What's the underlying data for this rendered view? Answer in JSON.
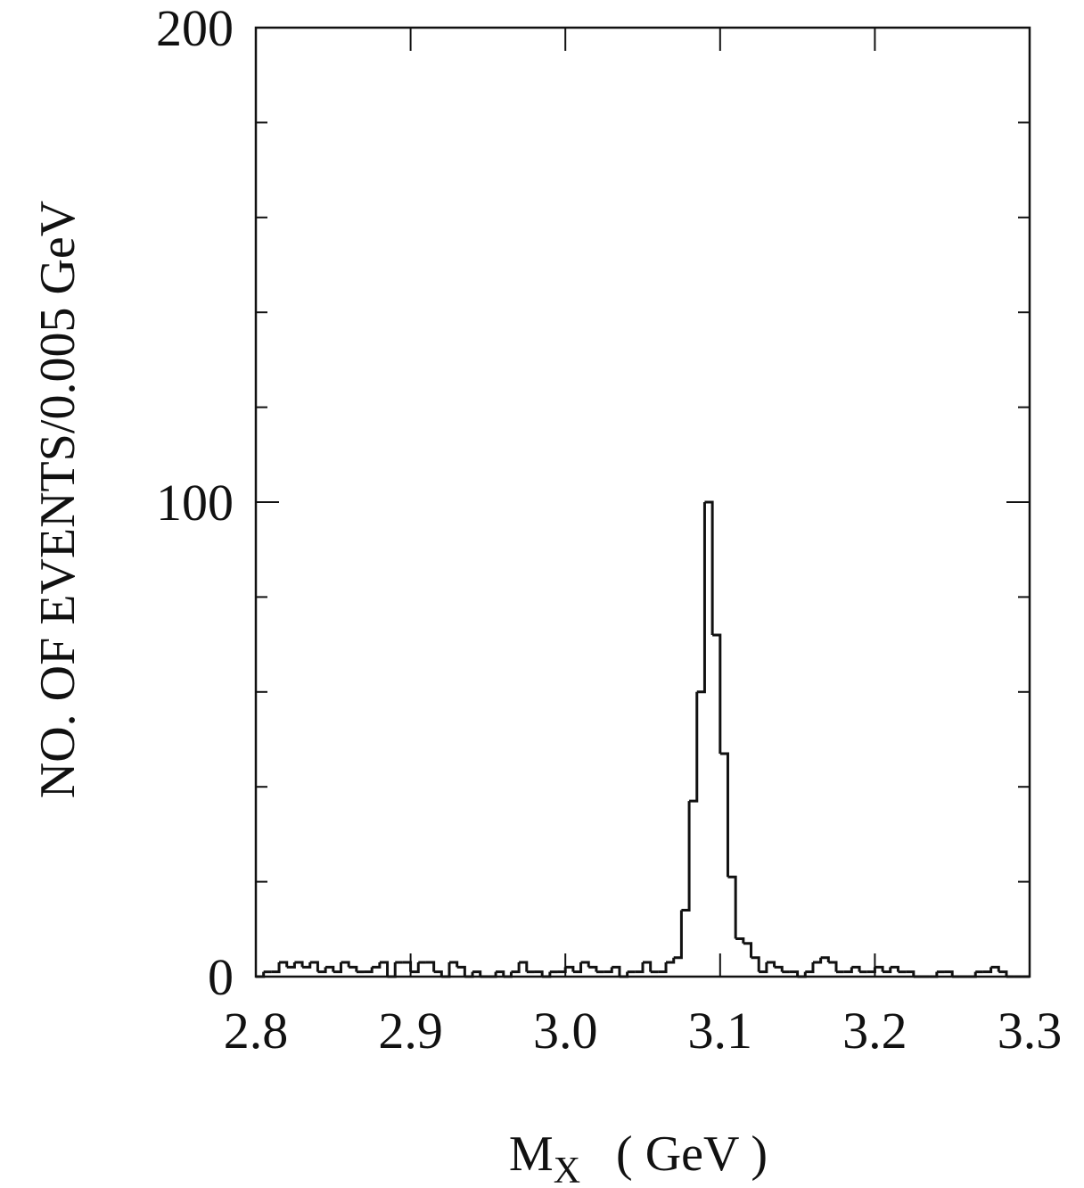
{
  "chart_data": {
    "type": "histogram",
    "y_label": "NO. OF EVENTS/0.005 GeV",
    "x_label": "M",
    "x_label_sub": "X",
    "x_label_unit": "( GeV )",
    "bins": [
      2.8,
      2.805,
      2.81,
      2.815,
      2.82,
      2.825,
      2.83,
      2.835,
      2.84,
      2.845,
      2.85,
      2.855,
      2.86,
      2.865,
      2.87,
      2.875,
      2.88,
      2.885,
      2.89,
      2.895,
      2.9,
      2.905,
      2.91,
      2.915,
      2.92,
      2.925,
      2.93,
      2.935,
      2.94,
      2.945,
      2.95,
      2.955,
      2.96,
      2.965,
      2.97,
      2.975,
      2.98,
      2.985,
      2.99,
      2.995,
      3.0,
      3.005,
      3.01,
      3.015,
      3.02,
      3.025,
      3.03,
      3.035,
      3.04,
      3.045,
      3.05,
      3.055,
      3.06,
      3.065,
      3.07,
      3.075,
      3.08,
      3.085,
      3.09,
      3.095,
      3.1,
      3.105,
      3.11,
      3.115,
      3.12,
      3.125,
      3.13,
      3.135,
      3.14,
      3.145,
      3.15,
      3.155,
      3.16,
      3.165,
      3.17,
      3.175,
      3.18,
      3.185,
      3.19,
      3.195,
      3.2,
      3.205,
      3.21,
      3.215,
      3.22,
      3.225,
      3.23,
      3.235,
      3.24,
      3.245,
      3.25,
      3.255,
      3.26,
      3.265,
      3.27,
      3.275,
      3.28,
      3.285,
      3.29,
      3.295,
      3.3
    ],
    "values": [
      0,
      1,
      1,
      3,
      2,
      3,
      2,
      3,
      1,
      2,
      1,
      3,
      2,
      1,
      1,
      2,
      3,
      0,
      3,
      3,
      1,
      3,
      3,
      1,
      0,
      3,
      2,
      0,
      1,
      0,
      0,
      1,
      0,
      1,
      3,
      1,
      1,
      0,
      1,
      1,
      2,
      1,
      3,
      2,
      1,
      1,
      2,
      0,
      1,
      1,
      3,
      1,
      1,
      3,
      4,
      14,
      37,
      60,
      100,
      72,
      47,
      21,
      8,
      7,
      4,
      1,
      3,
      2,
      1,
      1,
      0,
      1,
      3,
      4,
      3,
      1,
      1,
      2,
      1,
      1,
      2,
      1,
      2,
      1,
      1,
      0,
      0,
      0,
      1,
      1,
      0,
      0,
      0,
      1,
      1,
      2,
      1,
      0,
      0,
      0
    ],
    "color": "#111111",
    "xlim": [
      2.8,
      3.3
    ],
    "xticks": [
      2.8,
      2.9,
      {
        "value": 3,
        "label": "3.0"
      },
      3.1,
      3.2,
      3.3
    ],
    "ylim": [
      0,
      200
    ],
    "yticks": [
      0,
      100,
      200
    ],
    "yminorticks": [
      20,
      40,
      60,
      80,
      120,
      140,
      160,
      180
    ]
  }
}
